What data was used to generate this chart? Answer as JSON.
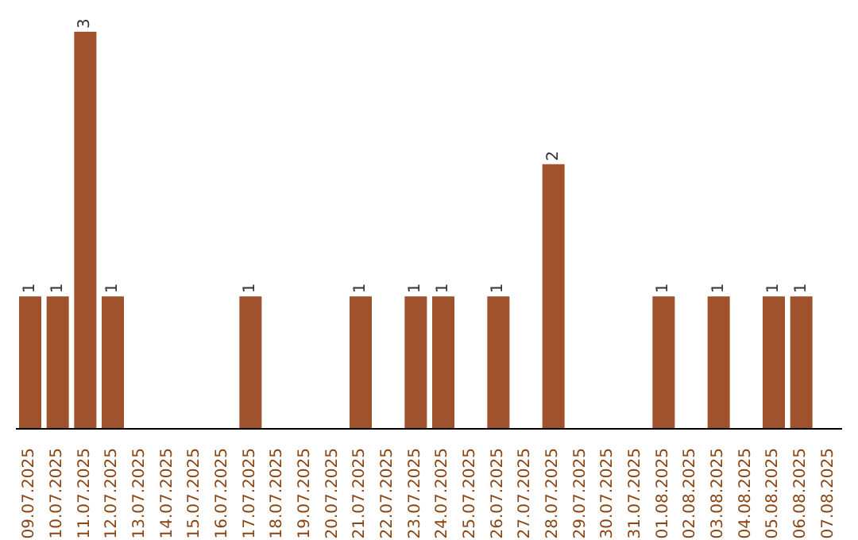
{
  "chart_data": {
    "type": "bar",
    "categories": [
      "09.07.2025",
      "10.07.2025",
      "11.07.2025",
      "12.07.2025",
      "13.07.2025",
      "14.07.2025",
      "15.07.2025",
      "16.07.2025",
      "17.07.2025",
      "18.07.2025",
      "19.07.2025",
      "20.07.2025",
      "21.07.2025",
      "22.07.2025",
      "23.07.2025",
      "24.07.2025",
      "25.07.2025",
      "26.07.2025",
      "27.07.2025",
      "28.07.2025",
      "29.07.2025",
      "30.07.2025",
      "31.07.2025",
      "01.08.2025",
      "02.08.2025",
      "03.08.2025",
      "04.08.2025",
      "05.08.2025",
      "06.08.2025",
      "07.08.2025"
    ],
    "values": [
      1,
      1,
      3,
      1,
      0,
      0,
      0,
      0,
      1,
      0,
      0,
      0,
      1,
      0,
      1,
      1,
      0,
      1,
      0,
      2,
      0,
      0,
      0,
      1,
      0,
      1,
      0,
      1,
      1,
      0
    ],
    "value_labels": [
      "1",
      "1",
      "3",
      "1",
      null,
      null,
      null,
      null,
      "1",
      null,
      null,
      null,
      "1",
      null,
      "1",
      "1",
      null,
      "1",
      null,
      "2",
      null,
      null,
      null,
      "1",
      null,
      "1",
      null,
      "1",
      "1",
      null
    ],
    "color": "#a0522d",
    "grid": false,
    "legend": false
  }
}
